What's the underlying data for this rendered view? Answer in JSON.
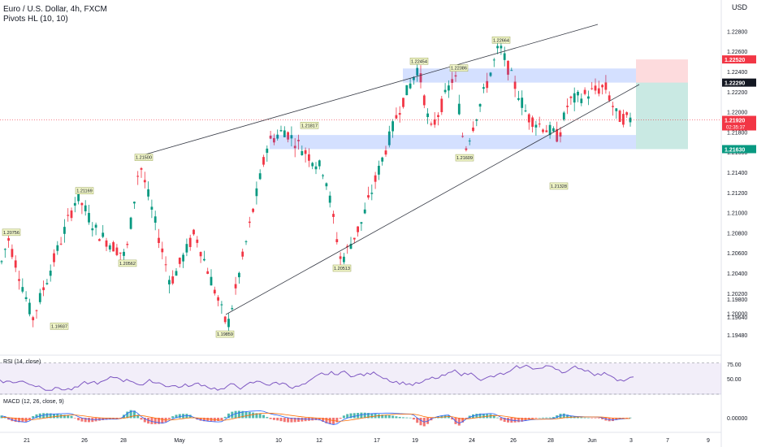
{
  "header": {
    "symbol_line": "Euro / U.S. Dollar, 4h, FXCM",
    "indicator_line": "Pivots HL (10, 10)",
    "currency": "USD"
  },
  "chart_data": {
    "type": "candlestick",
    "symbol": "Euro / U.S. Dollar",
    "timeframe": "4h",
    "broker": "FXCM",
    "price_axis": {
      "ticks": [
        1.228,
        1.226,
        1.224,
        1.222,
        1.22,
        1.218,
        1.216,
        1.214,
        1.212,
        1.21,
        1.208,
        1.206,
        1.204,
        1.202,
        1.2,
        1.198,
        1.1964,
        1.1948
      ],
      "tick_labels": [
        "1.22800",
        "1.22600",
        "1.22400",
        "1.22200",
        "1.22000",
        "1.21800",
        "1.21600",
        "1.21400",
        "1.21200",
        "1.21000",
        "1.20800",
        "1.20600",
        "1.20400",
        "1.20200",
        "1.20000",
        "1.19800",
        "1.19640",
        "1.19480"
      ],
      "highlighted": [
        {
          "value": 1.2252,
          "label": "1.22520",
          "color": "#f23645"
        },
        {
          "value": 1.2229,
          "label": "1.22290",
          "color": "#131722"
        },
        {
          "value": 1.2192,
          "label": "1.21920",
          "sub": "02:35:37",
          "color": "#f23645"
        },
        {
          "value": 1.2163,
          "label": "1.21630",
          "color": "#089981"
        }
      ]
    },
    "time_axis": {
      "labels": [
        "21",
        "26",
        "28",
        "May",
        "5",
        "10",
        "12",
        "17",
        "19",
        "24",
        "26",
        "28",
        "Jun",
        "3",
        "7",
        "9"
      ]
    },
    "pivots": [
      {
        "label": "1.20756",
        "price": 1.20756,
        "kind": "high"
      },
      {
        "label": "1.19937",
        "price": 1.19937,
        "kind": "low"
      },
      {
        "label": "1.21169",
        "price": 1.21169,
        "kind": "high"
      },
      {
        "label": "1.20562",
        "price": 1.20562,
        "kind": "low"
      },
      {
        "label": "1.21500",
        "price": 1.215,
        "kind": "high"
      },
      {
        "label": "1.19859",
        "price": 1.19859,
        "kind": "low"
      },
      {
        "label": "1.21817",
        "price": 1.21817,
        "kind": "high"
      },
      {
        "label": "1.20513",
        "price": 1.20513,
        "kind": "low"
      },
      {
        "label": "1.22454",
        "price": 1.22454,
        "kind": "high"
      },
      {
        "label": "1.22386",
        "price": 1.22386,
        "kind": "high"
      },
      {
        "label": "1.21609",
        "price": 1.21609,
        "kind": "low"
      },
      {
        "label": "1.22664",
        "price": 1.22664,
        "kind": "high"
      },
      {
        "label": "1.21328",
        "price": 1.21328,
        "kind": "low"
      }
    ],
    "zones": [
      {
        "name": "resistance-zone",
        "from": 1.2229,
        "to": 1.2243
      },
      {
        "name": "support-zone",
        "from": 1.2163,
        "to": 1.2177
      }
    ],
    "trade_box": {
      "entry": 1.2229,
      "stop": 1.2252,
      "target": 1.2163
    },
    "rsi": {
      "title": "RSI (14, close)",
      "levels": [
        75.0,
        50.0
      ],
      "level_labels": [
        "75.00",
        "50.00"
      ],
      "band": [
        30,
        70
      ]
    },
    "macd": {
      "title": "MACD (12, 26, close, 9)",
      "zero_label": "0.00000"
    }
  }
}
